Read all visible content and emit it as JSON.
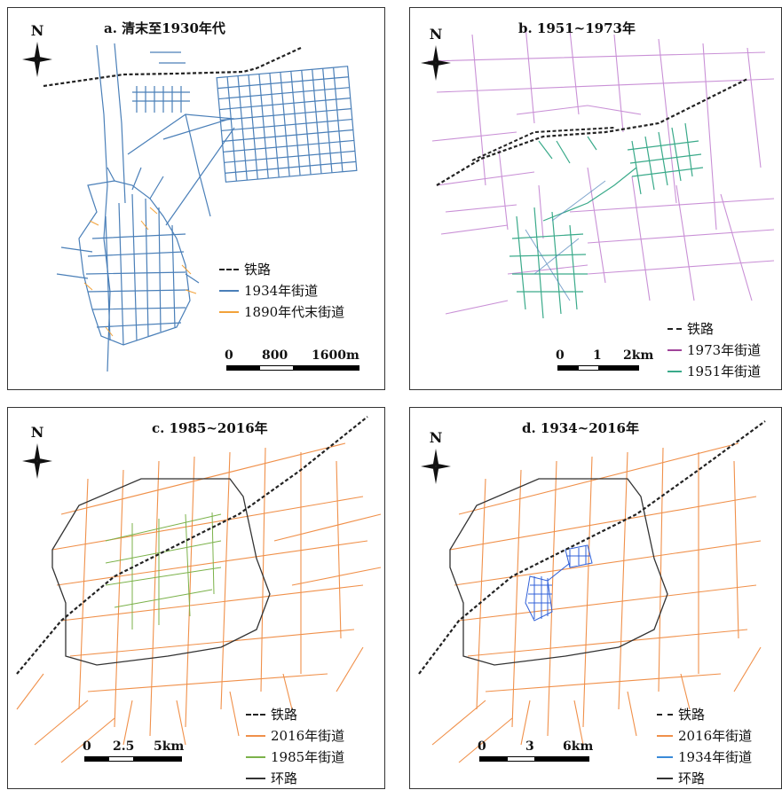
{
  "north_label": "N",
  "colors": {
    "railway": "#222222",
    "streets_1934": "#4a7fb8",
    "streets_1890": "#f2a23a",
    "streets_1973": "#c990d6",
    "streets_1951": "#3aaa8a",
    "streets_2016": "#f0904a",
    "streets_1985": "#7bb24a",
    "ring_road": "#333333",
    "streets_1934_d": "#3060d8"
  },
  "panels": {
    "a": {
      "title": "a. 清末至1930年代",
      "legend": {
        "railway": "铁路",
        "streets_1934": "1934年街道",
        "streets_1890": "1890年代末街道"
      },
      "scale": {
        "l0": "0",
        "l1": "800",
        "l2": "1600m"
      }
    },
    "b": {
      "title": "b. 1951~1973年",
      "legend": {
        "railway": "铁路",
        "streets_1973": "1973年街道",
        "streets_1951": "1951年街道"
      },
      "scale": {
        "l0": "0",
        "l1": "1",
        "l2": "2km"
      }
    },
    "c": {
      "title": "c. 1985~2016年",
      "legend": {
        "railway": "铁路",
        "streets_2016": "2016年街道",
        "streets_1985": "1985年街道",
        "ring_road": "环路"
      },
      "scale": {
        "l0": "0",
        "l1": "2.5",
        "l2": "5km"
      }
    },
    "d": {
      "title": "d. 1934~2016年",
      "legend": {
        "railway": "铁路",
        "streets_2016": "2016年街道",
        "streets_1934": "1934年街道",
        "ring_road": "环路"
      },
      "scale": {
        "l0": "0",
        "l1": "3",
        "l2": "6km"
      }
    }
  }
}
